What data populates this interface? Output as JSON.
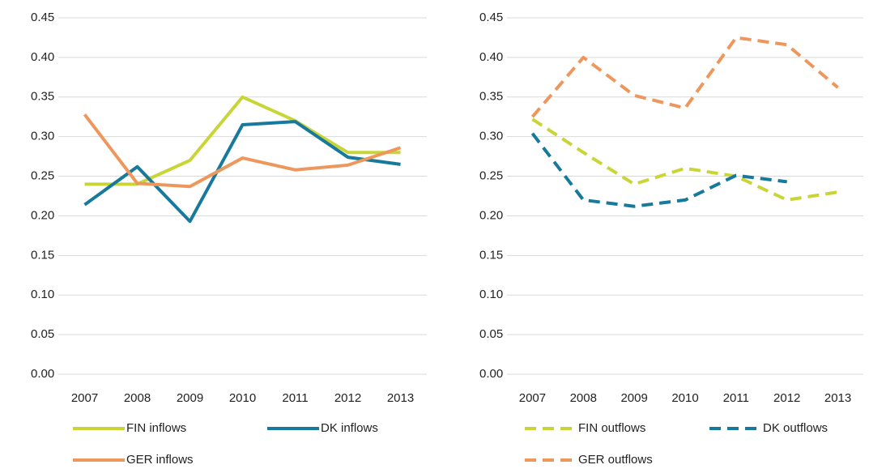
{
  "chart_data": [
    {
      "type": "line",
      "categories": [
        "2007",
        "2008",
        "2009",
        "2010",
        "2011",
        "2012",
        "2013"
      ],
      "ylim": [
        0,
        0.45
      ],
      "yticks": [
        {
          "value": 0,
          "label": "0.00"
        },
        0.05,
        {
          "value": 0.1,
          "label": "0.10"
        },
        0.15,
        {
          "value": 0.2,
          "label": "0.20"
        },
        0.25,
        {
          "value": 0.3,
          "label": "0.30"
        },
        0.35,
        {
          "value": 0.4,
          "label": "0.40"
        },
        0.45
      ],
      "grid": true,
      "series": [
        {
          "name": "FIN inflows",
          "color": "#c9d537",
          "linestyle": "solid",
          "values": [
            0.24,
            0.24,
            0.27,
            0.35,
            0.32,
            0.28,
            0.28
          ]
        },
        {
          "name": "DK inflows",
          "color": "#17799b",
          "linestyle": "solid",
          "values": [
            0.214,
            0.262,
            0.193,
            0.315,
            0.319,
            0.274,
            0.265
          ]
        },
        {
          "name": "GER inflows",
          "color": "#ee975c",
          "linestyle": "solid",
          "values": [
            0.328,
            0.241,
            0.237,
            0.273,
            0.258,
            0.264,
            0.286
          ]
        }
      ]
    },
    {
      "type": "line",
      "categories": [
        "2007",
        "2008",
        "2009",
        "2010",
        "2011",
        "2012",
        "2013"
      ],
      "ylim": [
        0,
        0.45
      ],
      "yticks": [
        {
          "value": 0,
          "label": "0.00"
        },
        0.05,
        {
          "value": 0.1,
          "label": "0.10"
        },
        0.15,
        {
          "value": 0.2,
          "label": "0.20"
        },
        0.25,
        {
          "value": 0.3,
          "label": "0.30"
        },
        0.35,
        {
          "value": 0.4,
          "label": "0.40"
        },
        0.45
      ],
      "grid": true,
      "series": [
        {
          "name": "FIN outflows",
          "color": "#c9d537",
          "linestyle": "dashed",
          "values": [
            0.322,
            0.28,
            0.24,
            0.26,
            0.25,
            0.22,
            0.23
          ]
        },
        {
          "name": "DK outflows",
          "color": "#17799b",
          "linestyle": "dashed",
          "values": [
            0.304,
            0.22,
            0.212,
            0.22,
            0.251,
            0.243,
            null
          ]
        },
        {
          "name": "GER outflows",
          "color": "#ee975c",
          "linestyle": "dashed",
          "values": [
            0.325,
            0.4,
            0.352,
            0.336,
            0.425,
            0.416,
            0.362
          ]
        }
      ]
    }
  ]
}
